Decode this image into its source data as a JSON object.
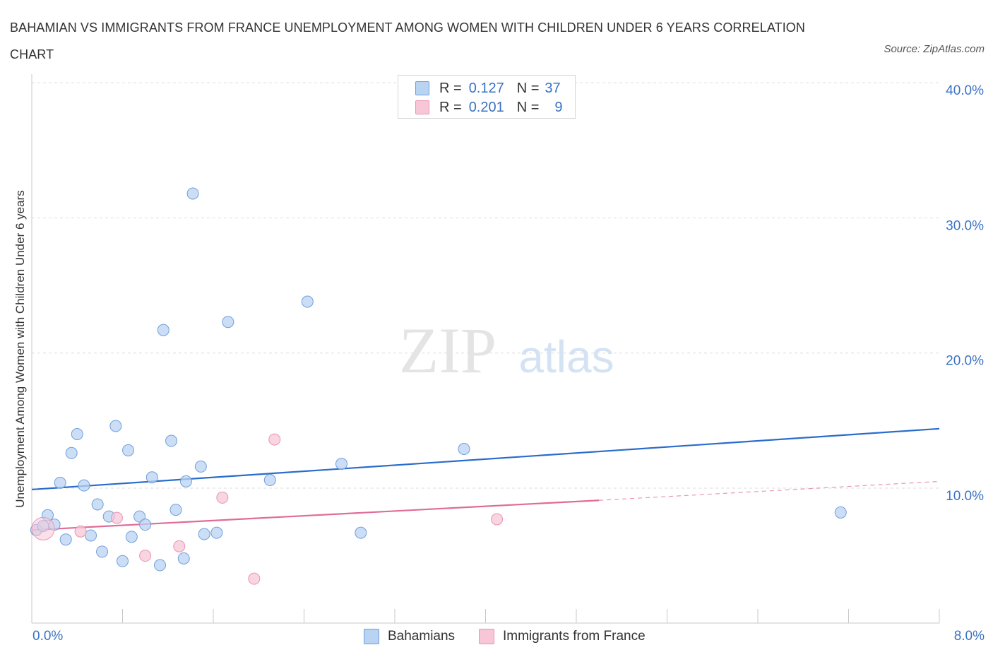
{
  "title": "BAHAMIAN VS IMMIGRANTS FROM FRANCE UNEMPLOYMENT AMONG WOMEN WITH CHILDREN UNDER 6 YEARS CORRELATION CHART",
  "source": "Source: ZipAtlas.com",
  "watermark": {
    "zip": "ZIP",
    "atlas": "atlas"
  },
  "legend": {
    "rows": [
      {
        "r_label": "R =",
        "r_value": "0.127",
        "n_label": "N =",
        "n_value": "37",
        "color": "#a9c8f0"
      },
      {
        "r_label": "R =",
        "r_value": "0.201",
        "n_label": "N =",
        "n_value": "9",
        "color": "#f5bcd0"
      }
    ]
  },
  "x_axis": {
    "min_label": "0.0%",
    "max_label": "8.0%"
  },
  "colors": {
    "blue_fill": "#b9d3f3",
    "blue_stroke": "#6f9fd9",
    "blue_line": "#2a6ccc",
    "pink_fill": "#f7c6d7",
    "pink_stroke": "#e895b2",
    "pink_line": "#e06b97",
    "grid": "#dddddd",
    "axis_label": "#3a72c4"
  },
  "chart_data": {
    "type": "scatter",
    "title": "BAHAMIAN VS IMMIGRANTS FROM FRANCE UNEMPLOYMENT AMONG WOMEN WITH CHILDREN UNDER 6 YEARS CORRELATION CHART",
    "xlabel": "",
    "ylabel": "Unemployment Among Women with Children Under 6 years",
    "xlim": [
      0,
      8
    ],
    "ylim": [
      0,
      40
    ],
    "y_ticks": [
      10,
      20,
      30,
      40
    ],
    "y_tick_labels": [
      "10.0%",
      "20.0%",
      "30.0%",
      "40.0%"
    ],
    "x_tick_count": 11,
    "series": [
      {
        "name": "Bahamians",
        "R": 0.127,
        "N": 37,
        "trend": {
          "x0": 0,
          "y0": 9.9,
          "x1": 8,
          "y1": 14.4
        },
        "points": [
          [
            0.04,
            6.9
          ],
          [
            0.1,
            7.2
          ],
          [
            0.14,
            8.0
          ],
          [
            0.2,
            7.3
          ],
          [
            0.25,
            10.4
          ],
          [
            0.3,
            6.2
          ],
          [
            0.35,
            12.6
          ],
          [
            0.4,
            14.0
          ],
          [
            0.46,
            10.2
          ],
          [
            0.52,
            6.5
          ],
          [
            0.58,
            8.8
          ],
          [
            0.62,
            5.3
          ],
          [
            0.68,
            7.9
          ],
          [
            0.74,
            14.6
          ],
          [
            0.8,
            4.6
          ],
          [
            0.85,
            12.8
          ],
          [
            0.88,
            6.4
          ],
          [
            0.95,
            7.9
          ],
          [
            1.0,
            7.3
          ],
          [
            1.06,
            10.8
          ],
          [
            1.13,
            4.3
          ],
          [
            1.16,
            21.7
          ],
          [
            1.23,
            13.5
          ],
          [
            1.27,
            8.4
          ],
          [
            1.34,
            4.8
          ],
          [
            1.36,
            10.5
          ],
          [
            1.42,
            31.8
          ],
          [
            1.49,
            11.6
          ],
          [
            1.52,
            6.6
          ],
          [
            1.63,
            6.7
          ],
          [
            1.73,
            22.3
          ],
          [
            2.1,
            10.6
          ],
          [
            2.43,
            23.8
          ],
          [
            2.73,
            11.8
          ],
          [
            2.9,
            6.7
          ],
          [
            3.81,
            12.9
          ],
          [
            7.13,
            8.2
          ]
        ]
      },
      {
        "name": "Immigrants from France",
        "R": 0.201,
        "N": 9,
        "trend": {
          "x0": 0,
          "y0": 6.9,
          "x1": 5.0,
          "y1": 9.1,
          "x_dash_end": 8,
          "y_dash_end": 10.5
        },
        "points": [
          [
            0.1,
            7.0
          ],
          [
            0.43,
            6.8
          ],
          [
            0.75,
            7.8
          ],
          [
            1.0,
            5.0
          ],
          [
            1.3,
            5.7
          ],
          [
            1.68,
            9.3
          ],
          [
            1.96,
            3.3
          ],
          [
            2.14,
            13.6
          ],
          [
            4.1,
            7.7
          ]
        ]
      }
    ]
  }
}
